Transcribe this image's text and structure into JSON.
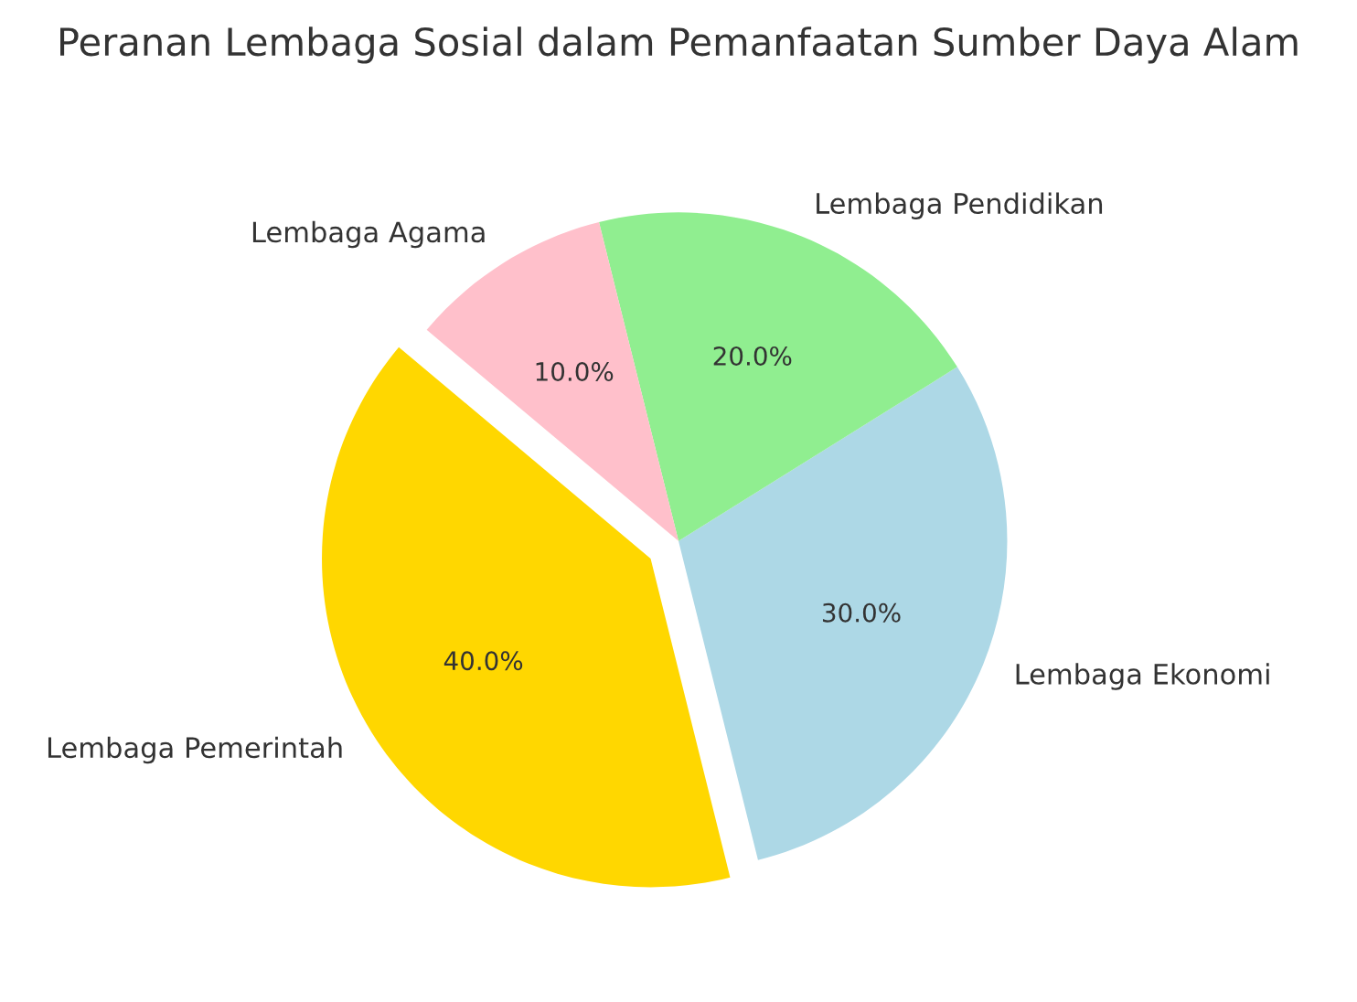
{
  "chart_data": {
    "type": "pie",
    "title": "Peranan Lembaga Sosial dalam Pemanfaatan Sumber Daya Alam",
    "categories": [
      "Lembaga Pemerintah",
      "Lembaga Ekonomi",
      "Lembaga Pendidikan",
      "Lembaga Agama"
    ],
    "values": [
      40,
      30,
      20,
      10
    ],
    "value_labels": [
      "40.0%",
      "30.0%",
      "20.0%",
      "10.0%"
    ],
    "colors": [
      "#ffd700",
      "#add8e6",
      "#90ee90",
      "#ffc0cb"
    ]
  }
}
